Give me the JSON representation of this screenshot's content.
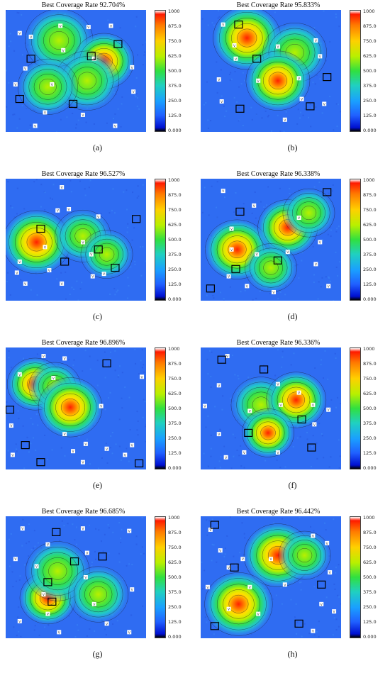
{
  "colorbar": {
    "ticks": [
      "1000",
      "875.0",
      "750.0",
      "625.0",
      "500.0",
      "375.0",
      "250.0",
      "125.0",
      "0.000"
    ],
    "colors": [
      "#ffffff",
      "#ff1a00",
      "#ff7a00",
      "#ffd000",
      "#b8f000",
      "#30e040",
      "#20d0c0",
      "#1aa0ff",
      "#2060ff",
      "#0010d0",
      "#000000"
    ]
  },
  "chart_data": [
    {
      "type": "heatmap",
      "label": "(a)",
      "title": "Best Coverage Rate 92.704%",
      "coverage_rate": 92.704,
      "peaks": [
        {
          "x": 0.38,
          "y": 0.25,
          "v": 650,
          "r": 0.17
        },
        {
          "x": 0.7,
          "y": 0.42,
          "v": 900,
          "r": 0.15
        },
        {
          "x": 0.58,
          "y": 0.58,
          "v": 640,
          "r": 0.16
        },
        {
          "x": 0.3,
          "y": 0.63,
          "v": 560,
          "r": 0.15
        }
      ],
      "squares": [
        {
          "x": 0.18,
          "y": 0.4
        },
        {
          "x": 0.61,
          "y": 0.38
        },
        {
          "x": 0.8,
          "y": 0.28
        },
        {
          "x": 0.1,
          "y": 0.73
        },
        {
          "x": 0.48,
          "y": 0.77
        }
      ],
      "sensors": [
        {
          "x": 0.1,
          "y": 0.19
        },
        {
          "x": 0.18,
          "y": 0.22
        },
        {
          "x": 0.39,
          "y": 0.13
        },
        {
          "x": 0.59,
          "y": 0.14
        },
        {
          "x": 0.75,
          "y": 0.13
        },
        {
          "x": 0.14,
          "y": 0.48
        },
        {
          "x": 0.07,
          "y": 0.61
        },
        {
          "x": 0.28,
          "y": 0.84
        },
        {
          "x": 0.55,
          "y": 0.86
        },
        {
          "x": 0.91,
          "y": 0.67
        },
        {
          "x": 0.9,
          "y": 0.47
        },
        {
          "x": 0.41,
          "y": 0.33
        },
        {
          "x": 0.21,
          "y": 0.95
        },
        {
          "x": 0.78,
          "y": 0.95
        },
        {
          "x": 0.63,
          "y": 0.4
        },
        {
          "x": 0.33,
          "y": 0.61
        }
      ]
    },
    {
      "type": "heatmap",
      "label": "(b)",
      "title": "Best Coverage Rate 95.833%",
      "coverage_rate": 95.833,
      "peaks": [
        {
          "x": 0.33,
          "y": 0.23,
          "v": 870,
          "r": 0.17
        },
        {
          "x": 0.67,
          "y": 0.35,
          "v": 650,
          "r": 0.16
        },
        {
          "x": 0.55,
          "y": 0.58,
          "v": 890,
          "r": 0.16
        }
      ],
      "squares": [
        {
          "x": 0.27,
          "y": 0.12
        },
        {
          "x": 0.4,
          "y": 0.4
        },
        {
          "x": 0.9,
          "y": 0.55
        },
        {
          "x": 0.78,
          "y": 0.79
        },
        {
          "x": 0.28,
          "y": 0.81
        }
      ],
      "sensors": [
        {
          "x": 0.16,
          "y": 0.12
        },
        {
          "x": 0.24,
          "y": 0.29
        },
        {
          "x": 0.55,
          "y": 0.3
        },
        {
          "x": 0.82,
          "y": 0.25
        },
        {
          "x": 0.85,
          "y": 0.38
        },
        {
          "x": 0.13,
          "y": 0.57
        },
        {
          "x": 0.15,
          "y": 0.75
        },
        {
          "x": 0.72,
          "y": 0.73
        },
        {
          "x": 0.88,
          "y": 0.77
        },
        {
          "x": 0.6,
          "y": 0.9
        },
        {
          "x": 0.25,
          "y": 0.4
        },
        {
          "x": 0.41,
          "y": 0.58
        },
        {
          "x": 0.7,
          "y": 0.56
        }
      ]
    },
    {
      "type": "heatmap",
      "label": "(c)",
      "title": "Best Coverage Rate 96.527%",
      "coverage_rate": 96.527,
      "peaks": [
        {
          "x": 0.22,
          "y": 0.52,
          "v": 910,
          "r": 0.17
        },
        {
          "x": 0.55,
          "y": 0.47,
          "v": 640,
          "r": 0.14
        },
        {
          "x": 0.72,
          "y": 0.62,
          "v": 680,
          "r": 0.13
        }
      ],
      "squares": [
        {
          "x": 0.25,
          "y": 0.41
        },
        {
          "x": 0.42,
          "y": 0.68
        },
        {
          "x": 0.66,
          "y": 0.58
        },
        {
          "x": 0.78,
          "y": 0.73
        },
        {
          "x": 0.93,
          "y": 0.33
        }
      ],
      "sensors": [
        {
          "x": 0.4,
          "y": 0.07
        },
        {
          "x": 0.37,
          "y": 0.26
        },
        {
          "x": 0.45,
          "y": 0.25
        },
        {
          "x": 0.66,
          "y": 0.31
        },
        {
          "x": 0.28,
          "y": 0.56
        },
        {
          "x": 0.1,
          "y": 0.68
        },
        {
          "x": 0.08,
          "y": 0.77
        },
        {
          "x": 0.31,
          "y": 0.75
        },
        {
          "x": 0.55,
          "y": 0.52
        },
        {
          "x": 0.61,
          "y": 0.62
        },
        {
          "x": 0.7,
          "y": 0.78
        },
        {
          "x": 0.4,
          "y": 0.86
        },
        {
          "x": 0.14,
          "y": 0.86
        },
        {
          "x": 0.62,
          "y": 0.8
        }
      ]
    },
    {
      "type": "heatmap",
      "label": "(d)",
      "title": "Best Coverage Rate 96.338%",
      "coverage_rate": 96.338,
      "peaks": [
        {
          "x": 0.26,
          "y": 0.58,
          "v": 860,
          "r": 0.16
        },
        {
          "x": 0.62,
          "y": 0.4,
          "v": 880,
          "r": 0.15
        },
        {
          "x": 0.77,
          "y": 0.28,
          "v": 620,
          "r": 0.13
        },
        {
          "x": 0.5,
          "y": 0.73,
          "v": 700,
          "r": 0.13
        }
      ],
      "squares": [
        {
          "x": 0.28,
          "y": 0.27
        },
        {
          "x": 0.25,
          "y": 0.74
        },
        {
          "x": 0.55,
          "y": 0.67
        },
        {
          "x": 0.9,
          "y": 0.11
        },
        {
          "x": 0.07,
          "y": 0.9
        }
      ],
      "sensors": [
        {
          "x": 0.16,
          "y": 0.1
        },
        {
          "x": 0.38,
          "y": 0.22
        },
        {
          "x": 0.7,
          "y": 0.32
        },
        {
          "x": 0.22,
          "y": 0.41
        },
        {
          "x": 0.22,
          "y": 0.58
        },
        {
          "x": 0.62,
          "y": 0.6
        },
        {
          "x": 0.4,
          "y": 0.62
        },
        {
          "x": 0.85,
          "y": 0.52
        },
        {
          "x": 0.33,
          "y": 0.88
        },
        {
          "x": 0.52,
          "y": 0.93
        },
        {
          "x": 0.91,
          "y": 0.88
        },
        {
          "x": 0.82,
          "y": 0.7
        },
        {
          "x": 0.2,
          "y": 0.8
        }
      ]
    },
    {
      "type": "heatmap",
      "label": "(e)",
      "title": "Best Coverage Rate 96.896%",
      "coverage_rate": 96.896,
      "peaks": [
        {
          "x": 0.21,
          "y": 0.3,
          "v": 900,
          "r": 0.14
        },
        {
          "x": 0.35,
          "y": 0.32,
          "v": 680,
          "r": 0.13
        },
        {
          "x": 0.46,
          "y": 0.49,
          "v": 900,
          "r": 0.16
        }
      ],
      "squares": [
        {
          "x": 0.72,
          "y": 0.13
        },
        {
          "x": 0.03,
          "y": 0.51
        },
        {
          "x": 0.14,
          "y": 0.8
        },
        {
          "x": 0.25,
          "y": 0.94
        },
        {
          "x": 0.95,
          "y": 0.95
        }
      ],
      "sensors": [
        {
          "x": 0.27,
          "y": 0.07
        },
        {
          "x": 0.42,
          "y": 0.09
        },
        {
          "x": 0.1,
          "y": 0.22
        },
        {
          "x": 0.97,
          "y": 0.24
        },
        {
          "x": 0.68,
          "y": 0.48
        },
        {
          "x": 0.04,
          "y": 0.64
        },
        {
          "x": 0.42,
          "y": 0.71
        },
        {
          "x": 0.57,
          "y": 0.79
        },
        {
          "x": 0.72,
          "y": 0.83
        },
        {
          "x": 0.9,
          "y": 0.8
        },
        {
          "x": 0.05,
          "y": 0.88
        },
        {
          "x": 0.55,
          "y": 0.94
        },
        {
          "x": 0.34,
          "y": 0.25
        },
        {
          "x": 0.48,
          "y": 0.85
        },
        {
          "x": 0.85,
          "y": 0.88
        }
      ]
    },
    {
      "type": "heatmap",
      "label": "(f)",
      "title": "Best Coverage Rate 96.336%",
      "coverage_rate": 96.336,
      "peaks": [
        {
          "x": 0.43,
          "y": 0.47,
          "v": 650,
          "r": 0.15
        },
        {
          "x": 0.68,
          "y": 0.43,
          "v": 860,
          "r": 0.15
        },
        {
          "x": 0.48,
          "y": 0.7,
          "v": 880,
          "r": 0.13
        }
      ],
      "squares": [
        {
          "x": 0.15,
          "y": 0.1
        },
        {
          "x": 0.45,
          "y": 0.18
        },
        {
          "x": 0.72,
          "y": 0.59
        },
        {
          "x": 0.34,
          "y": 0.7
        },
        {
          "x": 0.79,
          "y": 0.82
        }
      ],
      "sensors": [
        {
          "x": 0.19,
          "y": 0.07
        },
        {
          "x": 0.13,
          "y": 0.31
        },
        {
          "x": 0.03,
          "y": 0.48
        },
        {
          "x": 0.13,
          "y": 0.71
        },
        {
          "x": 0.55,
          "y": 0.3
        },
        {
          "x": 0.7,
          "y": 0.37
        },
        {
          "x": 0.8,
          "y": 0.47
        },
        {
          "x": 0.91,
          "y": 0.51
        },
        {
          "x": 0.81,
          "y": 0.63
        },
        {
          "x": 0.55,
          "y": 0.86
        },
        {
          "x": 0.31,
          "y": 0.86
        },
        {
          "x": 0.18,
          "y": 0.9
        },
        {
          "x": 0.57,
          "y": 0.47
        },
        {
          "x": 0.35,
          "y": 0.52
        }
      ]
    },
    {
      "type": "heatmap",
      "label": "(g)",
      "title": "Best Coverage Rate 96.685%",
      "coverage_rate": 96.685,
      "peaks": [
        {
          "x": 0.3,
          "y": 0.67,
          "v": 880,
          "r": 0.14
        },
        {
          "x": 0.37,
          "y": 0.45,
          "v": 660,
          "r": 0.16
        },
        {
          "x": 0.66,
          "y": 0.64,
          "v": 620,
          "r": 0.15
        }
      ],
      "squares": [
        {
          "x": 0.36,
          "y": 0.13
        },
        {
          "x": 0.49,
          "y": 0.37
        },
        {
          "x": 0.69,
          "y": 0.33
        },
        {
          "x": 0.3,
          "y": 0.54
        },
        {
          "x": 0.33,
          "y": 0.7
        }
      ],
      "sensors": [
        {
          "x": 0.12,
          "y": 0.1
        },
        {
          "x": 0.55,
          "y": 0.1
        },
        {
          "x": 0.88,
          "y": 0.12
        },
        {
          "x": 0.07,
          "y": 0.35
        },
        {
          "x": 0.3,
          "y": 0.23
        },
        {
          "x": 0.22,
          "y": 0.41
        },
        {
          "x": 0.57,
          "y": 0.5
        },
        {
          "x": 0.63,
          "y": 0.72
        },
        {
          "x": 0.9,
          "y": 0.6
        },
        {
          "x": 0.3,
          "y": 0.8
        },
        {
          "x": 0.1,
          "y": 0.86
        },
        {
          "x": 0.38,
          "y": 0.95
        },
        {
          "x": 0.72,
          "y": 0.88
        },
        {
          "x": 0.88,
          "y": 0.95
        },
        {
          "x": 0.27,
          "y": 0.64
        },
        {
          "x": 0.58,
          "y": 0.3
        }
      ]
    },
    {
      "type": "heatmap",
      "label": "(h)",
      "title": "Best Coverage Rate 96.442%",
      "coverage_rate": 96.442,
      "peaks": [
        {
          "x": 0.55,
          "y": 0.32,
          "v": 900,
          "r": 0.17
        },
        {
          "x": 0.27,
          "y": 0.72,
          "v": 840,
          "r": 0.17
        },
        {
          "x": 0.74,
          "y": 0.32,
          "v": 620,
          "r": 0.13
        }
      ],
      "squares": [
        {
          "x": 0.1,
          "y": 0.07
        },
        {
          "x": 0.24,
          "y": 0.42
        },
        {
          "x": 0.86,
          "y": 0.56
        },
        {
          "x": 0.1,
          "y": 0.9
        },
        {
          "x": 0.7,
          "y": 0.88
        }
      ],
      "sensors": [
        {
          "x": 0.07,
          "y": 0.11
        },
        {
          "x": 0.14,
          "y": 0.28
        },
        {
          "x": 0.3,
          "y": 0.35
        },
        {
          "x": 0.2,
          "y": 0.42
        },
        {
          "x": 0.05,
          "y": 0.58
        },
        {
          "x": 0.6,
          "y": 0.56
        },
        {
          "x": 0.35,
          "y": 0.58
        },
        {
          "x": 0.9,
          "y": 0.22
        },
        {
          "x": 0.8,
          "y": 0.16
        },
        {
          "x": 0.92,
          "y": 0.46
        },
        {
          "x": 0.86,
          "y": 0.72
        },
        {
          "x": 0.95,
          "y": 0.78
        },
        {
          "x": 0.8,
          "y": 0.94
        },
        {
          "x": 0.5,
          "y": 0.35
        },
        {
          "x": 0.2,
          "y": 0.76
        },
        {
          "x": 0.41,
          "y": 0.8
        }
      ]
    }
  ]
}
